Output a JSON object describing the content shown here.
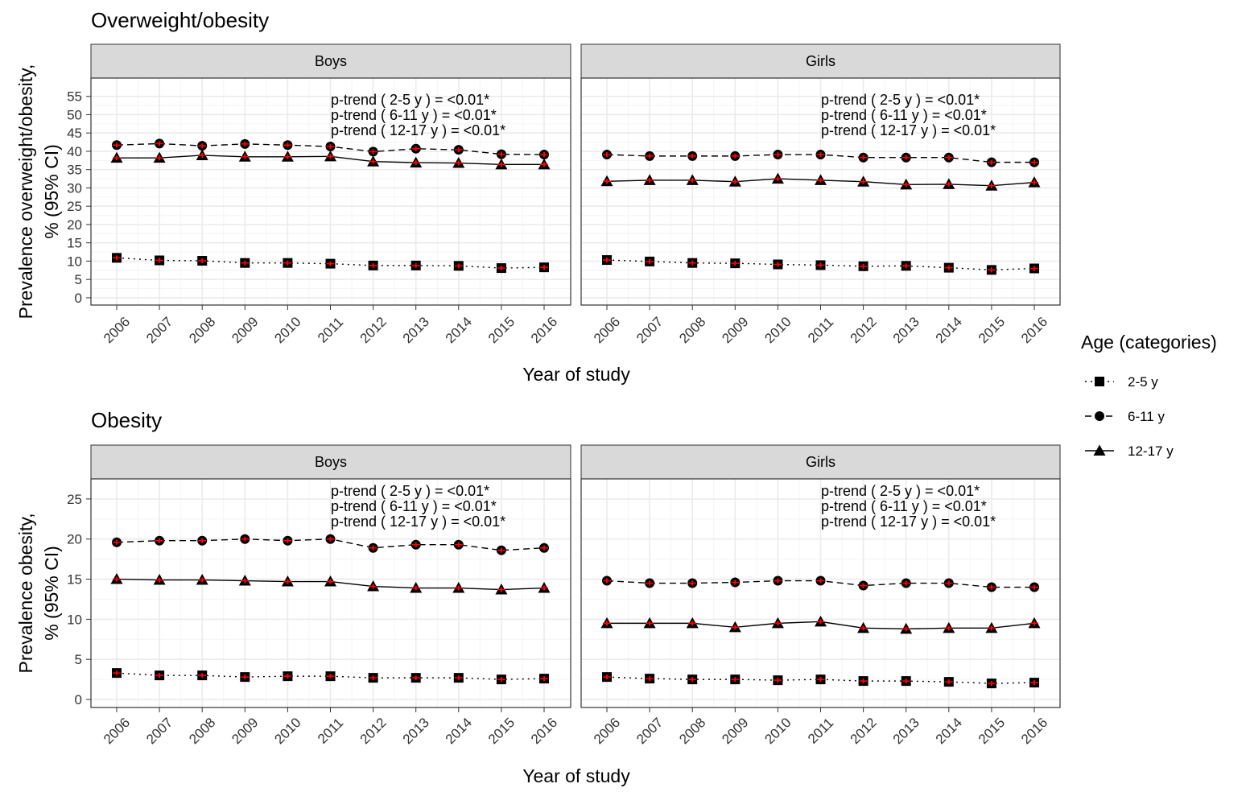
{
  "chart_data": [
    {
      "type": "line",
      "title": "Overweight/obesity",
      "ylabel": "Prevalence overweight/obesity,\n% (95% CI)",
      "xlabel": "Year of study",
      "x": [
        "2006",
        "2007",
        "2008",
        "2009",
        "2010",
        "2011",
        "2012",
        "2013",
        "2014",
        "2015",
        "2016"
      ],
      "yticks": [
        0,
        5,
        10,
        15,
        20,
        25,
        30,
        35,
        40,
        45,
        50,
        55
      ],
      "ylim": [
        -2,
        60
      ],
      "grid": true,
      "panels": [
        {
          "label": "Boys",
          "ptrend": [
            "p-trend ( 2-5 y ) = <0.01*",
            "p-trend ( 6-11 y ) = <0.01*",
            "p-trend ( 12-17 y ) = <0.01*"
          ],
          "series": [
            {
              "name": "2-5 y",
              "values": [
                10.9,
                10.2,
                10.1,
                9.5,
                9.5,
                9.3,
                8.8,
                8.8,
                8.7,
                8.1,
                8.3
              ]
            },
            {
              "name": "6-11 y",
              "values": [
                41.7,
                42.1,
                41.5,
                42.0,
                41.7,
                41.3,
                39.9,
                40.7,
                40.4,
                39.2,
                39.1
              ]
            },
            {
              "name": "12-17 y",
              "values": [
                38.2,
                38.2,
                38.9,
                38.5,
                38.5,
                38.6,
                37.2,
                36.9,
                36.8,
                36.4,
                36.4
              ]
            }
          ]
        },
        {
          "label": "Girls",
          "ptrend": [
            "p-trend ( 2-5 y ) = <0.01*",
            "p-trend ( 6-11 y ) = <0.01*",
            "p-trend ( 12-17 y ) = <0.01*"
          ],
          "series": [
            {
              "name": "2-5 y",
              "values": [
                10.3,
                9.9,
                9.5,
                9.4,
                9.1,
                8.9,
                8.6,
                8.7,
                8.2,
                7.6,
                8.0
              ]
            },
            {
              "name": "6-11 y",
              "values": [
                39.1,
                38.7,
                38.7,
                38.7,
                39.1,
                39.1,
                38.3,
                38.3,
                38.3,
                37.0,
                37.0
              ]
            },
            {
              "name": "12-17 y",
              "values": [
                31.8,
                32.1,
                32.1,
                31.7,
                32.5,
                32.1,
                31.7,
                30.9,
                31.0,
                30.6,
                31.5
              ]
            }
          ]
        }
      ]
    },
    {
      "type": "line",
      "title": "Obesity",
      "ylabel": "Prevalence obesity,\n% (95% CI)",
      "xlabel": "Year of study",
      "x": [
        "2006",
        "2007",
        "2008",
        "2009",
        "2010",
        "2011",
        "2012",
        "2013",
        "2014",
        "2015",
        "2016"
      ],
      "yticks": [
        0,
        5,
        10,
        15,
        20,
        25
      ],
      "ylim": [
        -1,
        27.5
      ],
      "grid": true,
      "panels": [
        {
          "label": "Boys",
          "ptrend": [
            "p-trend ( 2-5 y ) = <0.01*",
            "p-trend ( 6-11 y ) = <0.01*",
            "p-trend ( 12-17 y ) = <0.01*"
          ],
          "series": [
            {
              "name": "2-5 y",
              "values": [
                3.3,
                3.0,
                3.0,
                2.8,
                2.9,
                2.9,
                2.7,
                2.7,
                2.7,
                2.5,
                2.6
              ]
            },
            {
              "name": "6-11 y",
              "values": [
                19.6,
                19.8,
                19.8,
                20.0,
                19.8,
                20.0,
                18.9,
                19.3,
                19.3,
                18.6,
                18.9
              ]
            },
            {
              "name": "12-17 y",
              "values": [
                15.0,
                14.9,
                14.9,
                14.8,
                14.7,
                14.7,
                14.1,
                13.9,
                13.9,
                13.7,
                13.9
              ]
            }
          ]
        },
        {
          "label": "Girls",
          "ptrend": [
            "p-trend ( 2-5 y ) = <0.01*",
            "p-trend ( 6-11 y ) = <0.01*",
            "p-trend ( 12-17 y ) = <0.01*"
          ],
          "series": [
            {
              "name": "2-5 y",
              "values": [
                2.8,
                2.6,
                2.5,
                2.5,
                2.4,
                2.5,
                2.3,
                2.3,
                2.2,
                2.0,
                2.1
              ]
            },
            {
              "name": "6-11 y",
              "values": [
                14.8,
                14.5,
                14.5,
                14.6,
                14.8,
                14.8,
                14.2,
                14.5,
                14.5,
                14.0,
                14.0
              ]
            },
            {
              "name": "12-17 y",
              "values": [
                9.5,
                9.5,
                9.5,
                9.0,
                9.5,
                9.7,
                8.9,
                8.8,
                8.9,
                8.9,
                9.5
              ]
            }
          ]
        }
      ]
    }
  ],
  "legend": {
    "title": "Age (categories)",
    "placement": "right",
    "items": [
      {
        "label": "2-5 y",
        "marker": "square",
        "dash": "dotted"
      },
      {
        "label": "6-11 y",
        "marker": "circle",
        "dash": "dashed"
      },
      {
        "label": "12-17 y",
        "marker": "triangle",
        "dash": "solid"
      }
    ]
  },
  "colors": {
    "marker_fill": "#000000",
    "ci_color": "#ff0000",
    "strip_bg": "#d9d9d9",
    "grid_major": "#ebebeb",
    "grid_minor": "#f4f4f4",
    "panel_border": "#333333"
  }
}
